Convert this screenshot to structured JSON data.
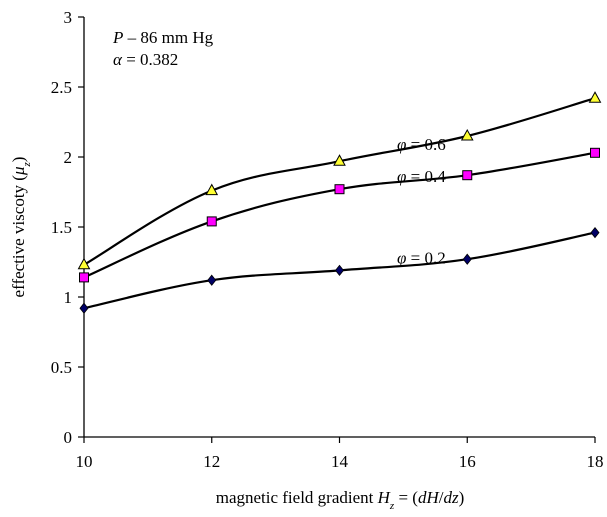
{
  "chart_data": {
    "type": "line",
    "x": [
      10,
      12,
      14,
      16,
      18
    ],
    "series": [
      {
        "name": "φ = 0.6",
        "phi_label": "φ",
        "value_label": " = 0.6",
        "values": [
          1.23,
          1.76,
          1.97,
          2.15,
          2.42
        ],
        "marker": "triangle",
        "marker_color": "#ffff33"
      },
      {
        "name": "φ = 0.4",
        "phi_label": "φ",
        "value_label": " = 0.4",
        "values": [
          1.14,
          1.54,
          1.77,
          1.87,
          2.03
        ],
        "marker": "square",
        "marker_color": "#ff00ff"
      },
      {
        "name": "φ = 0.2",
        "phi_label": "φ",
        "value_label": " = 0.2",
        "values": [
          0.92,
          1.12,
          1.19,
          1.27,
          1.46
        ],
        "marker": "diamond",
        "marker_color": "#000066"
      }
    ],
    "xlim": [
      10,
      18
    ],
    "ylim": [
      0,
      3
    ],
    "x_ticks": [
      "10",
      "12",
      "14",
      "16",
      "18"
    ],
    "y_ticks": [
      "0",
      "0.5",
      "1",
      "1.5",
      "2",
      "2.5",
      "3"
    ],
    "xlabel": {
      "prefix": "magnetic field gradient ",
      "var": "H",
      "sub": "z",
      "mid": " = (",
      "expr": "dH",
      "slash": "/",
      "expr2": "dz",
      "suffix": ")"
    },
    "ylabel": {
      "prefix": "effective viscoty (",
      "var": "μ",
      "sub": "z",
      "suffix": ")"
    },
    "annotations": {
      "pressure": {
        "var": "P",
        "text": " – 86 mm Hg"
      },
      "alpha": {
        "var": "α",
        "text": " = 0.382"
      }
    },
    "grid": false,
    "legend": "none"
  }
}
